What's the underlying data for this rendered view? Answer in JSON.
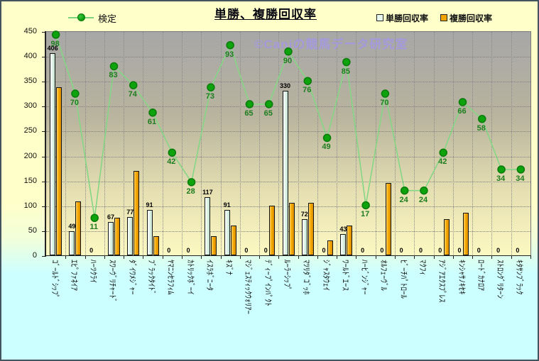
{
  "chart": {
    "title": "単勝、複勝回収率",
    "watermark": "©Caniの競馬データ研究室",
    "line_legend_label": "検定",
    "bar_legend": [
      {
        "label": "単勝回収率",
        "color": "#e7f6ee"
      },
      {
        "label": "複勝回収率",
        "color": "#f2a500"
      }
    ]
  },
  "chart_data": {
    "type": "bar",
    "title": "単勝、複勝回収率",
    "categories": [
      "ｺﾞｰﾙﾄﾞｼｯﾌﾟ",
      "ｴﾋﾟﾌｧﾈｲｱ",
      "ﾊｰﾂｸﾗｲ",
      "ｽﾜｰｳﾞﾘﾁｬｰﾄﾞ",
      "ﾀﾞｲﾜﾒｼﾞｬｰ",
      "ﾌﾞﾗｯｸﾀｲﾄﾞ",
      "ﾔﾏﾆﾝｾﾗﾌｨﾑ",
      "ｶﾄﾘｯｸﾎﾞｰｲ",
      "ｲｽﾗﾎﾞﾆｰﾀ",
      "ｷｽﾞﾅ",
      "ﾏｼﾞｪｽﾃｨｯｸｳｫﾘｱｰ",
      "ﾃﾞｨｰﾌﾟｲﾝﾊﾟｸﾄ",
      "ﾙｰﾗｰｼｯﾌﾟ",
      "ﾏﾂﾘﾀﾞｺﾞｯﾎ",
      "ｼﾞｬｽﾀｳｪｲ",
      "ﾜｰﾙﾄﾞｴｰｽ",
      "ﾊｰﾋﾞﾝｼﾞｬｰ",
      "ｵﾙﾌｪｰｳﾞﾙ",
      "ﾋﾞｰﾁﾊﾟﾄﾛｰﾙ",
      "ﾏｸﾌｨ",
      "ｱｼﾞｱｴｸｽﾌﾟﾚｽ",
      "ｷﾝｼｬｻﾉｷｾｷ",
      "ﾛｰﾄﾞｶﾅﾛｱ",
      "ｽﾄﾛﾝｸﾞﾘﾀｰﾝ",
      "ｷﾀｻﾝﾌﾞﾗｯｸ"
    ],
    "series": [
      {
        "name": "単勝回収率",
        "type": "bar",
        "data_labels": true,
        "values": [
          406,
          49,
          0,
          67,
          77,
          91,
          0,
          0,
          117,
          91,
          0,
          0,
          330,
          72,
          0,
          43,
          0,
          0,
          0,
          0,
          0,
          0,
          0,
          0,
          0
        ]
      },
      {
        "name": "複勝回収率",
        "type": "bar",
        "data_labels": false,
        "values": [
          338,
          108,
          0,
          75,
          170,
          38,
          0,
          0,
          38,
          60,
          0,
          100,
          105,
          105,
          30,
          60,
          0,
          145,
          0,
          0,
          72,
          85,
          0,
          0,
          0
        ]
      },
      {
        "name": "検定",
        "type": "line",
        "data_labels": true,
        "values": [
          98,
          70,
          11,
          83,
          74,
          61,
          42,
          28,
          73,
          93,
          65,
          65,
          90,
          76,
          49,
          85,
          17,
          70,
          24,
          24,
          42,
          66,
          58,
          34,
          34
        ],
        "secondary_axis_mapping": {
          "offset": 28.5,
          "scale": 4.23
        }
      }
    ],
    "ylabel": "",
    "ylim": [
      0,
      450
    ],
    "ytick_step": 50,
    "yticks": [
      450,
      400,
      350,
      300,
      250,
      200,
      150,
      100,
      50,
      0
    ],
    "grid": true,
    "legend_position": "top"
  }
}
